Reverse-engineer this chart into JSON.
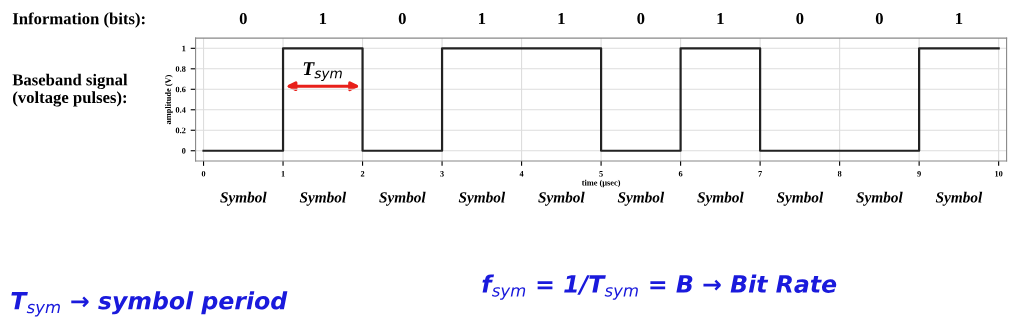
{
  "chart_data": {
    "type": "step",
    "x": [
      0,
      1,
      2,
      3,
      4,
      5,
      6,
      7,
      8,
      9,
      10
    ],
    "series": [
      {
        "color": "#222222",
        "values": [
          0,
          1,
          0,
          1,
          1,
          0,
          1,
          0,
          0,
          1,
          1
        ]
      }
    ],
    "xlabel": "time (μsec)",
    "ylabel": "amplitude (V)",
    "xlim": [
      -0.1,
      10.1
    ],
    "ylim": [
      -0.1,
      1.1
    ],
    "xticks": [
      0,
      1,
      2,
      3,
      4,
      5,
      6,
      7,
      8,
      9,
      10
    ],
    "yticks": [
      0,
      0.2,
      0.4,
      0.6,
      0.8,
      1
    ],
    "grid": true,
    "annotations": [
      "Information (bits):",
      "0",
      "1",
      "0",
      "1",
      "1",
      "0",
      "1",
      "0",
      "0",
      "1",
      "T$_{sym}$",
      "Baseband signal\n(voltage pulses):",
      "Symbol",
      "Symbol",
      "Symbol",
      "Symbol",
      "Symbol",
      "Symbol",
      "Symbol",
      "Symbol",
      "Symbol",
      "Symbol",
      "T$_{sym}$ → symbol period",
      "f$_{sym}$ = 1/T$_{sym}$ = B → Bit Rate"
    ]
  }
}
